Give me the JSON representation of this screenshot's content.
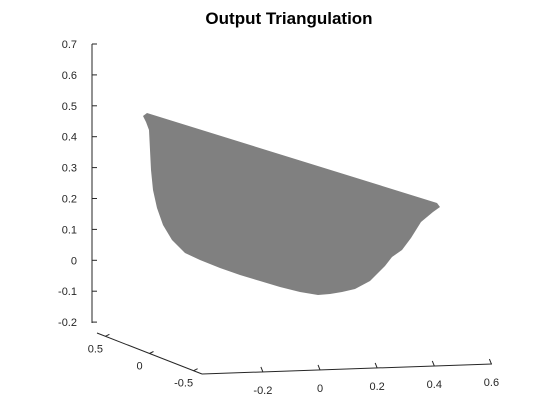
{
  "chart_data": {
    "type": "surface",
    "title": "Output Triangulation",
    "xlabel": "",
    "ylabel": "",
    "zlabel": "",
    "surface_color": "#808080",
    "background": "#ffffff",
    "grid": false,
    "x_ticks": [
      "-0.2",
      "0",
      "0.2",
      "0.4",
      "0.6"
    ],
    "y_ticks": [
      "0.5",
      "0",
      "-0.5"
    ],
    "z_ticks": [
      "0.7",
      "0.6",
      "0.5",
      "0.4",
      "0.3",
      "0.2",
      "0.1",
      "0",
      "-0.1",
      "-0.2"
    ],
    "z_range": [
      -0.2,
      0.7
    ]
  }
}
